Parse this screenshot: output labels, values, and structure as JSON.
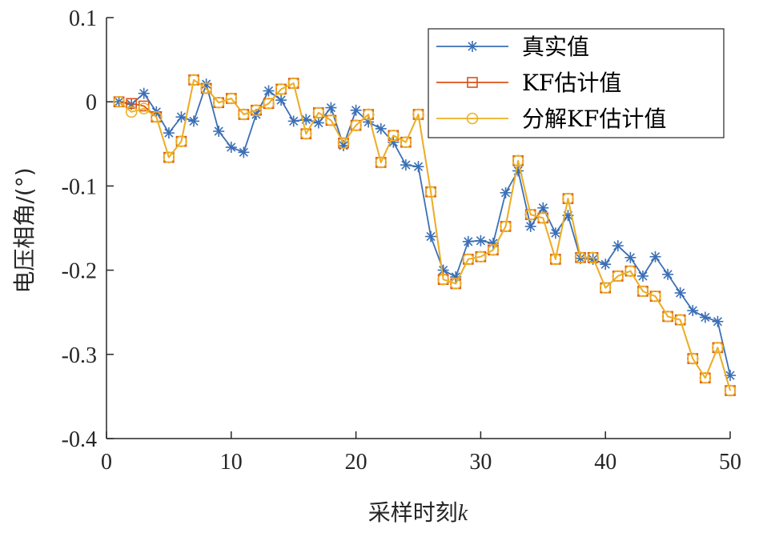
{
  "chart_data": {
    "type": "line",
    "xlabel": "采样时刻",
    "xlabel_var": "k",
    "ylabel": "电压相角/(°)",
    "xlim": [
      0,
      50
    ],
    "ylim": [
      -0.4,
      0.1
    ],
    "xticks": [
      0,
      10,
      20,
      30,
      40,
      50
    ],
    "xtick_labels": [
      "0",
      "10",
      "20",
      "30",
      "40",
      "50"
    ],
    "yticks": [
      0.1,
      0,
      -0.1,
      -0.2,
      -0.3,
      -0.4
    ],
    "ytick_labels": [
      "0.1",
      "0",
      "-0.1",
      "-0.2",
      "-0.3",
      "-0.4"
    ],
    "grid": false,
    "legend_position": "top-right",
    "x": [
      1,
      2,
      3,
      4,
      5,
      6,
      7,
      8,
      9,
      10,
      11,
      12,
      13,
      14,
      15,
      16,
      17,
      18,
      19,
      20,
      21,
      22,
      23,
      24,
      25,
      26,
      27,
      28,
      29,
      30,
      31,
      32,
      33,
      34,
      35,
      36,
      37,
      38,
      39,
      40,
      41,
      42,
      43,
      44,
      45,
      46,
      47,
      48,
      49,
      50
    ],
    "series": [
      {
        "name": "真实值",
        "color": "#3b6fb6",
        "marker": "asterisk",
        "values": [
          0.0,
          -0.003,
          0.01,
          -0.012,
          -0.037,
          -0.018,
          -0.023,
          0.021,
          -0.035,
          -0.054,
          -0.06,
          -0.015,
          0.013,
          0.002,
          -0.023,
          -0.021,
          -0.025,
          -0.007,
          -0.052,
          -0.01,
          -0.024,
          -0.032,
          -0.048,
          -0.075,
          -0.077,
          -0.16,
          -0.2,
          -0.208,
          -0.166,
          -0.165,
          -0.168,
          -0.108,
          -0.082,
          -0.148,
          -0.126,
          -0.156,
          -0.135,
          -0.186,
          -0.187,
          -0.193,
          -0.171,
          -0.185,
          -0.207,
          -0.184,
          -0.205,
          -0.227,
          -0.248,
          -0.256,
          -0.261,
          -0.325
        ]
      },
      {
        "name": "KF估计值",
        "color": "#d95319",
        "marker": "square",
        "values": [
          0.0,
          -0.002,
          -0.005,
          -0.018,
          -0.066,
          -0.047,
          0.026,
          0.016,
          -0.001,
          0.004,
          -0.015,
          -0.01,
          -0.002,
          0.015,
          0.022,
          -0.038,
          -0.013,
          -0.022,
          -0.049,
          -0.028,
          -0.015,
          -0.072,
          -0.04,
          -0.048,
          -0.015,
          -0.107,
          -0.211,
          -0.216,
          -0.187,
          -0.184,
          -0.176,
          -0.148,
          -0.07,
          -0.134,
          -0.138,
          -0.187,
          -0.115,
          -0.185,
          -0.185,
          -0.221,
          -0.207,
          -0.201,
          -0.225,
          -0.231,
          -0.255,
          -0.259,
          -0.305,
          -0.328,
          -0.292,
          -0.343
        ]
      },
      {
        "name": "分解KF估计值",
        "color": "#edb120",
        "marker": "circle",
        "values": [
          0.0,
          -0.012,
          -0.008,
          -0.018,
          -0.066,
          -0.047,
          0.026,
          0.016,
          -0.001,
          0.004,
          -0.015,
          -0.01,
          -0.002,
          0.015,
          0.022,
          -0.038,
          -0.013,
          -0.022,
          -0.049,
          -0.028,
          -0.015,
          -0.072,
          -0.04,
          -0.048,
          -0.015,
          -0.107,
          -0.211,
          -0.216,
          -0.187,
          -0.184,
          -0.176,
          -0.148,
          -0.07,
          -0.134,
          -0.138,
          -0.187,
          -0.115,
          -0.185,
          -0.185,
          -0.221,
          -0.207,
          -0.201,
          -0.225,
          -0.231,
          -0.255,
          -0.259,
          -0.305,
          -0.328,
          -0.292,
          -0.343
        ]
      }
    ]
  }
}
